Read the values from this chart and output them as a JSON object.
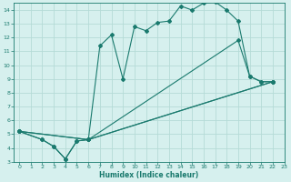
{
  "xlabel": "Humidex (Indice chaleur)",
  "xlim": [
    -0.5,
    23
  ],
  "ylim": [
    3,
    14.5
  ],
  "yticks": [
    3,
    4,
    5,
    6,
    7,
    8,
    9,
    10,
    11,
    12,
    13,
    14
  ],
  "xticks": [
    0,
    1,
    2,
    3,
    4,
    5,
    6,
    7,
    8,
    9,
    10,
    11,
    12,
    13,
    14,
    15,
    16,
    17,
    18,
    19,
    20,
    21,
    22,
    23
  ],
  "line_color": "#1a7a6e",
  "bg_color": "#d6f0ee",
  "grid_color": "#b5dbd7",
  "line1_x": [
    0,
    2,
    3,
    4,
    5,
    6,
    7,
    8,
    9,
    10,
    11,
    12,
    13,
    14,
    15,
    16,
    17,
    18,
    19,
    20,
    21,
    22
  ],
  "line1_y": [
    5.2,
    4.6,
    4.1,
    3.2,
    4.5,
    4.6,
    11.4,
    12.2,
    9.0,
    12.8,
    12.5,
    13.1,
    13.2,
    14.3,
    14.0,
    14.5,
    14.6,
    14.0,
    13.2,
    9.2,
    8.8,
    8.8
  ],
  "line2_x": [
    0,
    2,
    3,
    4,
    5,
    6,
    22
  ],
  "line2_y": [
    5.2,
    4.6,
    4.1,
    3.2,
    4.5,
    4.6,
    8.8
  ],
  "line3_x": [
    0,
    6,
    22
  ],
  "line3_y": [
    5.2,
    4.6,
    8.8
  ],
  "line4_x": [
    0,
    6,
    19,
    20,
    21,
    22
  ],
  "line4_y": [
    5.2,
    4.6,
    11.8,
    9.2,
    8.8,
    8.8
  ]
}
